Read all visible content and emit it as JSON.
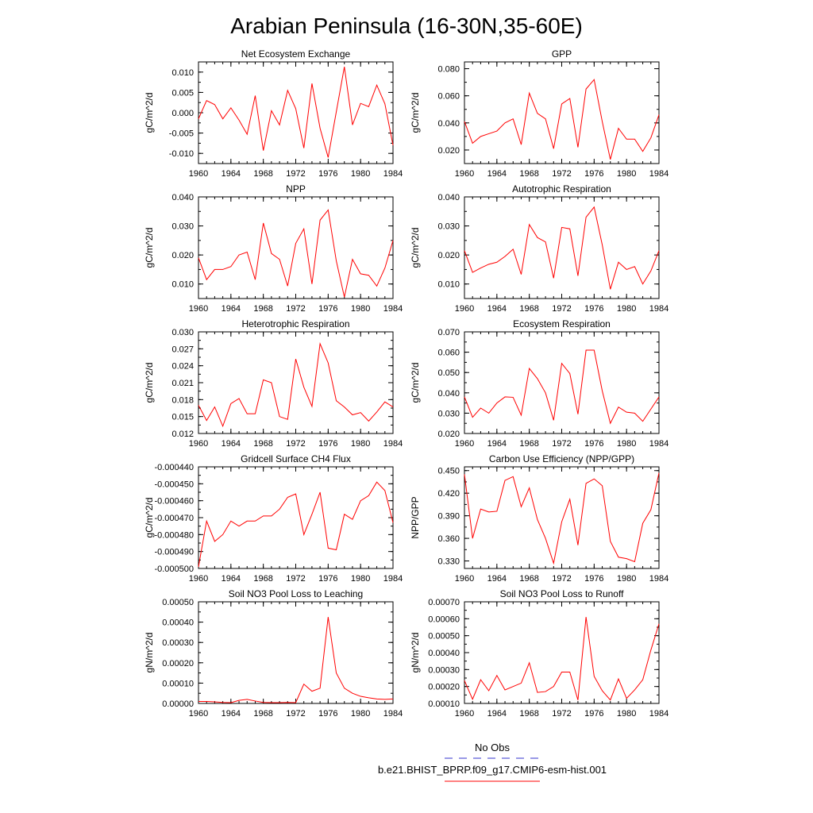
{
  "figure": {
    "title": "Arabian Peninsula (16-30N,35-60E)"
  },
  "legend": {
    "entries": [
      {
        "label": "No Obs",
        "color": "#3333cc",
        "dash": true
      },
      {
        "label": "b.e21.BHIST_BPRP.f09_g17.CMIP6-esm-hist.001",
        "color": "#ff0000",
        "dash": false
      }
    ]
  },
  "colors": {
    "series": "#ff0000",
    "axis": "#000000"
  },
  "chart_data": [
    {
      "type": "line",
      "title": "Net Ecosystem Exchange",
      "ylabel": "gC/m^2/d",
      "xlim": [
        1960,
        1984
      ],
      "ylim": [
        -0.0125,
        0.0125
      ],
      "xticks": [
        "1960",
        "1964",
        "1968",
        "1972",
        "1976",
        "1980",
        "1984"
      ],
      "yticks": [
        "-0.010",
        "-0.005",
        "0.000",
        "0.005",
        "0.010"
      ],
      "x": [
        1960,
        1961,
        1962,
        1963,
        1964,
        1965,
        1966,
        1967,
        1968,
        1969,
        1970,
        1971,
        1972,
        1973,
        1974,
        1975,
        1976,
        1977,
        1978,
        1979,
        1980,
        1981,
        1982,
        1983,
        1984
      ],
      "values": [
        -0.0015,
        0.003,
        0.002,
        -0.0015,
        0.0012,
        -0.0018,
        -0.0053,
        0.0042,
        -0.0093,
        0.0005,
        -0.003,
        0.0055,
        0.001,
        -0.0087,
        0.0072,
        -0.0038,
        -0.011,
        0.0002,
        0.0113,
        -0.003,
        0.0023,
        0.0015,
        0.0068,
        0.0022,
        -0.008
      ]
    },
    {
      "type": "line",
      "title": "GPP",
      "ylabel": "gC/m^2/d",
      "xlim": [
        1960,
        1984
      ],
      "ylim": [
        0.01,
        0.085
      ],
      "xticks": [
        "1960",
        "1964",
        "1968",
        "1972",
        "1976",
        "1980",
        "1984"
      ],
      "yticks": [
        "0.020",
        "0.040",
        "0.060",
        "0.080"
      ],
      "x": [
        1960,
        1961,
        1962,
        1963,
        1964,
        1965,
        1966,
        1967,
        1968,
        1969,
        1970,
        1971,
        1972,
        1973,
        1974,
        1975,
        1976,
        1977,
        1978,
        1979,
        1980,
        1981,
        1982,
        1983,
        1984
      ],
      "values": [
        0.041,
        0.025,
        0.03,
        0.032,
        0.034,
        0.04,
        0.043,
        0.024,
        0.062,
        0.047,
        0.043,
        0.021,
        0.054,
        0.058,
        0.022,
        0.065,
        0.072,
        0.041,
        0.013,
        0.036,
        0.028,
        0.028,
        0.019,
        0.029,
        0.046
      ]
    },
    {
      "type": "line",
      "title": "NPP",
      "ylabel": "gC/m^2/d",
      "xlim": [
        1960,
        1984
      ],
      "ylim": [
        0.005,
        0.04
      ],
      "xticks": [
        "1960",
        "1964",
        "1968",
        "1972",
        "1976",
        "1980",
        "1984"
      ],
      "yticks": [
        "0.010",
        "0.020",
        "0.030",
        "0.040"
      ],
      "x": [
        1960,
        1961,
        1962,
        1963,
        1964,
        1965,
        1966,
        1967,
        1968,
        1969,
        1970,
        1971,
        1972,
        1973,
        1974,
        1975,
        1976,
        1977,
        1978,
        1979,
        1980,
        1981,
        1982,
        1983,
        1984
      ],
      "values": [
        0.019,
        0.0115,
        0.015,
        0.015,
        0.016,
        0.02,
        0.021,
        0.0115,
        0.031,
        0.0205,
        0.0185,
        0.0093,
        0.024,
        0.029,
        0.01,
        0.032,
        0.0355,
        0.018,
        0.0055,
        0.0185,
        0.0135,
        0.013,
        0.0093,
        0.0155,
        0.025
      ]
    },
    {
      "type": "line",
      "title": "Autotrophic Respiration",
      "ylabel": "gC/m^2/d",
      "xlim": [
        1960,
        1984
      ],
      "ylim": [
        0.005,
        0.04
      ],
      "xticks": [
        "1960",
        "1964",
        "1968",
        "1972",
        "1976",
        "1980",
        "1984"
      ],
      "yticks": [
        "0.010",
        "0.020",
        "0.030",
        "0.040"
      ],
      "x": [
        1960,
        1961,
        1962,
        1963,
        1964,
        1965,
        1966,
        1967,
        1968,
        1969,
        1970,
        1971,
        1972,
        1973,
        1974,
        1975,
        1976,
        1977,
        1978,
        1979,
        1980,
        1981,
        1982,
        1983,
        1984
      ],
      "values": [
        0.0215,
        0.014,
        0.0155,
        0.0168,
        0.0175,
        0.0195,
        0.022,
        0.0133,
        0.0305,
        0.026,
        0.0245,
        0.012,
        0.0295,
        0.029,
        0.0128,
        0.033,
        0.0365,
        0.0235,
        0.0082,
        0.0175,
        0.015,
        0.016,
        0.01,
        0.0145,
        0.0215
      ]
    },
    {
      "type": "line",
      "title": "Heterotrophic Respiration",
      "ylabel": "gC/m^2/d",
      "xlim": [
        1960,
        1984
      ],
      "ylim": [
        0.012,
        0.03
      ],
      "xticks": [
        "1960",
        "1964",
        "1968",
        "1972",
        "1976",
        "1980",
        "1984"
      ],
      "yticks": [
        "0.012",
        "0.015",
        "0.018",
        "0.021",
        "0.024",
        "0.027",
        "0.030"
      ],
      "x": [
        1960,
        1961,
        1962,
        1963,
        1964,
        1965,
        1966,
        1967,
        1968,
        1969,
        1970,
        1971,
        1972,
        1973,
        1974,
        1975,
        1976,
        1977,
        1978,
        1979,
        1980,
        1981,
        1982,
        1983,
        1984
      ],
      "values": [
        0.017,
        0.0143,
        0.0167,
        0.0133,
        0.0173,
        0.0182,
        0.0155,
        0.0155,
        0.0215,
        0.021,
        0.015,
        0.0145,
        0.0252,
        0.0202,
        0.0168,
        0.0279,
        0.0245,
        0.0178,
        0.0167,
        0.0153,
        0.0157,
        0.0142,
        0.0158,
        0.0176,
        0.0167
      ]
    },
    {
      "type": "line",
      "title": "Ecosystem Respiration",
      "ylabel": "gC/m^2/d",
      "xlim": [
        1960,
        1984
      ],
      "ylim": [
        0.02,
        0.07
      ],
      "xticks": [
        "1960",
        "1964",
        "1968",
        "1972",
        "1976",
        "1980",
        "1984"
      ],
      "yticks": [
        "0.020",
        "0.030",
        "0.040",
        "0.050",
        "0.060",
        "0.070"
      ],
      "x": [
        1960,
        1961,
        1962,
        1963,
        1964,
        1965,
        1966,
        1967,
        1968,
        1969,
        1970,
        1971,
        1972,
        1973,
        1974,
        1975,
        1976,
        1977,
        1978,
        1979,
        1980,
        1981,
        1982,
        1983,
        1984
      ],
      "values": [
        0.038,
        0.028,
        0.0325,
        0.03,
        0.035,
        0.038,
        0.0378,
        0.029,
        0.052,
        0.047,
        0.04,
        0.0265,
        0.0545,
        0.0495,
        0.0295,
        0.061,
        0.061,
        0.041,
        0.025,
        0.033,
        0.0305,
        0.03,
        0.026,
        0.032,
        0.038
      ]
    },
    {
      "type": "line",
      "title": "Gridcell Surface CH4 Flux",
      "ylabel": "gC/m^2/d",
      "xlim": [
        1960,
        1984
      ],
      "ylim": [
        -0.0005,
        -0.00044
      ],
      "xticks": [
        "1960",
        "1964",
        "1968",
        "1972",
        "1976",
        "1980",
        "1984"
      ],
      "yticks": [
        "-0.000500",
        "-0.000490",
        "-0.000480",
        "-0.000470",
        "-0.000460",
        "-0.000450",
        "-0.000440"
      ],
      "x": [
        1960,
        1961,
        1962,
        1963,
        1964,
        1965,
        1966,
        1967,
        1968,
        1969,
        1970,
        1971,
        1972,
        1973,
        1974,
        1975,
        1976,
        1977,
        1978,
        1979,
        1980,
        1981,
        1982,
        1983,
        1984
      ],
      "values": [
        -0.000499,
        -0.000472,
        -0.000484,
        -0.00048,
        -0.000472,
        -0.000475,
        -0.000472,
        -0.000472,
        -0.000469,
        -0.000469,
        -0.000465,
        -0.000458,
        -0.000456,
        -0.00048,
        -0.000468,
        -0.000455,
        -0.000488,
        -0.000489,
        -0.000468,
        -0.000471,
        -0.00046,
        -0.000457,
        -0.000449,
        -0.000454,
        -0.000473
      ]
    },
    {
      "type": "line",
      "title": "Carbon Use Efficiency (NPP/GPP)",
      "ylabel": "NPP/GPP",
      "xlim": [
        1960,
        1984
      ],
      "ylim": [
        0.32,
        0.455
      ],
      "xticks": [
        "1960",
        "1964",
        "1968",
        "1972",
        "1976",
        "1980",
        "1984"
      ],
      "yticks": [
        "0.330",
        "0.360",
        "0.390",
        "0.420",
        "0.450"
      ],
      "x": [
        1960,
        1961,
        1962,
        1963,
        1964,
        1965,
        1966,
        1967,
        1968,
        1969,
        1970,
        1971,
        1972,
        1973,
        1974,
        1975,
        1976,
        1977,
        1978,
        1979,
        1980,
        1981,
        1982,
        1983,
        1984
      ],
      "values": [
        0.445,
        0.36,
        0.399,
        0.395,
        0.396,
        0.437,
        0.442,
        0.402,
        0.427,
        0.385,
        0.36,
        0.327,
        0.382,
        0.412,
        0.351,
        0.433,
        0.439,
        0.43,
        0.356,
        0.335,
        0.333,
        0.329,
        0.38,
        0.398,
        0.447
      ]
    },
    {
      "type": "line",
      "title": "Soil NO3 Pool Loss to Leaching",
      "ylabel": "gN/m^2/d",
      "xlim": [
        1960,
        1984
      ],
      "ylim": [
        0,
        0.0005
      ],
      "xticks": [
        "1960",
        "1964",
        "1968",
        "1972",
        "1976",
        "1980",
        "1984"
      ],
      "yticks": [
        "0.00000",
        "0.00010",
        "0.00020",
        "0.00030",
        "0.00040",
        "0.00050"
      ],
      "x": [
        1960,
        1961,
        1962,
        1963,
        1964,
        1965,
        1966,
        1967,
        1968,
        1969,
        1970,
        1971,
        1972,
        1973,
        1974,
        1975,
        1976,
        1977,
        1978,
        1979,
        1980,
        1981,
        1982,
        1983,
        1984
      ],
      "values": [
        1e-05,
        1e-05,
        8e-06,
        5e-06,
        4e-06,
        1.5e-05,
        2e-05,
        1.2e-05,
        5e-06,
        4e-06,
        4e-06,
        5e-06,
        4e-06,
        9.5e-05,
        6e-05,
        7.5e-05,
        0.000425,
        0.00015,
        7.5e-05,
        5e-05,
        3.5e-05,
        2.8e-05,
        2.2e-05,
        2e-05,
        2.2e-05
      ]
    },
    {
      "type": "line",
      "title": "Soil NO3 Pool Loss to Runoff",
      "ylabel": "gN/m^2/d",
      "xlim": [
        1960,
        1984
      ],
      "ylim": [
        0.0001,
        0.0007
      ],
      "xticks": [
        "1960",
        "1964",
        "1968",
        "1972",
        "1976",
        "1980",
        "1984"
      ],
      "yticks": [
        "0.00010",
        "0.00020",
        "0.00030",
        "0.00040",
        "0.00050",
        "0.00060",
        "0.00070"
      ],
      "x": [
        1960,
        1961,
        1962,
        1963,
        1964,
        1965,
        1966,
        1967,
        1968,
        1969,
        1970,
        1971,
        1972,
        1973,
        1974,
        1975,
        1976,
        1977,
        1978,
        1979,
        1980,
        1981,
        1982,
        1983,
        1984
      ],
      "values": [
        0.000235,
        0.000125,
        0.00024,
        0.000175,
        0.000265,
        0.00018,
        0.0002,
        0.00022,
        0.00034,
        0.000165,
        0.00017,
        0.0002,
        0.000285,
        0.000285,
        0.00012,
        0.00061,
        0.00026,
        0.000175,
        0.00012,
        0.000245,
        0.00013,
        0.00018,
        0.00024,
        0.000415,
        0.00057
      ]
    }
  ]
}
